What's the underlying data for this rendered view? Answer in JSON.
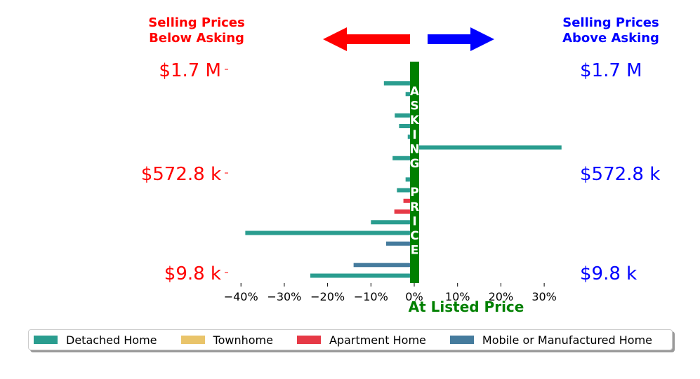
{
  "chart_data": {
    "type": "bar",
    "orientation": "horizontal",
    "xlabel": "At Listed Price",
    "xlim": [
      -0.43,
      0.35
    ],
    "xticks": [
      -0.4,
      -0.3,
      -0.2,
      -0.1,
      0.0,
      0.1,
      0.2,
      0.3
    ],
    "xtick_labels": [
      "−40%",
      "−30%",
      "−20%",
      "−10%",
      "0%",
      "10%",
      "20%",
      "30%"
    ],
    "y_tick_labels_left": [
      "$1.7 M",
      "$572.8 k",
      "$9.8 k"
    ],
    "y_tick_labels_right": [
      "$1.7 M",
      "$572.8 k",
      "$9.8 k"
    ],
    "left_header": [
      "Selling Prices",
      "Below Asking"
    ],
    "right_header": [
      "Selling Prices",
      "Above Asking"
    ],
    "vertical_band_letters": [
      "A",
      "S",
      "K",
      "I",
      "N",
      "G",
      "",
      "P",
      "R",
      "I",
      "C",
      "E"
    ],
    "colors": {
      "below": "#ff0000",
      "above": "#0000ff",
      "asking_band": "#008000",
      "Detached Home": "#2a9d8f",
      "Townhome": "#e9c46a",
      "Apartment Home": "#e63946",
      "Mobile or Manufactured Home": "#457b9d"
    },
    "legend": [
      "Detached Home",
      "Townhome",
      "Apartment Home",
      "Mobile or Manufactured Home"
    ],
    "legend_placement": "bottom",
    "grid": false,
    "bars": [
      {
        "series": "Detached Home",
        "value": -0.07
      },
      {
        "series": "Detached Home",
        "value": -0.02
      },
      {
        "series": "Detached Home",
        "value": -0.005
      },
      {
        "series": "Detached Home",
        "value": -0.045
      },
      {
        "series": "Detached Home",
        "value": -0.035
      },
      {
        "series": "Detached Home",
        "value": -0.015
      },
      {
        "series": "Detached Home",
        "value": 0.34
      },
      {
        "series": "Detached Home",
        "value": -0.05
      },
      {
        "series": "Detached Home",
        "value": -0.01
      },
      {
        "series": "Detached Home",
        "value": -0.02
      },
      {
        "series": "Detached Home",
        "value": -0.04
      },
      {
        "series": "Apartment Home",
        "value": -0.025
      },
      {
        "series": "Apartment Home",
        "value": -0.046
      },
      {
        "series": "Detached Home",
        "value": -0.1
      },
      {
        "series": "Detached Home",
        "value": -0.39
      },
      {
        "series": "Mobile or Manufactured Home",
        "value": -0.065
      },
      {
        "series": "Detached Home",
        "value": -0.002
      },
      {
        "series": "Mobile or Manufactured Home",
        "value": -0.14
      },
      {
        "series": "Detached Home",
        "value": -0.24
      }
    ]
  }
}
